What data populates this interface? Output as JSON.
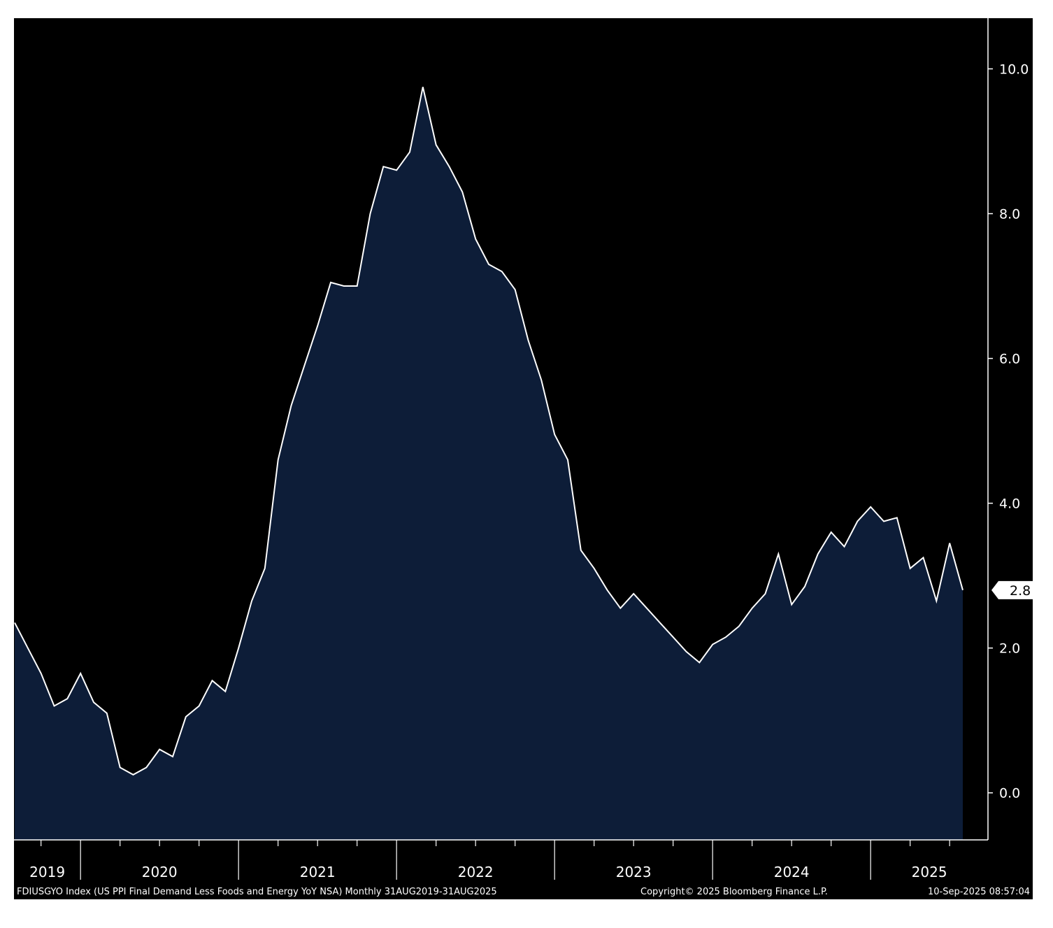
{
  "colors": {
    "background": "#000000",
    "area_fill": "#0d1d38",
    "line": "#ffffff",
    "text": "#ffffff",
    "page": "#ffffff"
  },
  "footer": {
    "series_description": "FDIUSGYO Index (US PPI Final Demand Less Foods and Energy YoY NSA)  Monthly 31AUG2019-31AUG2025",
    "copyright": "Copyright© 2025 Bloomberg Finance L.P.",
    "timestamp": "10-Sep-2025 08:57:04"
  },
  "chart_data": {
    "type": "area",
    "title": "",
    "xlabel": "",
    "ylabel": "",
    "x_range": [
      "2019-08",
      "2025-08"
    ],
    "ylim": [
      -0.65,
      10.7
    ],
    "y_ticks": [
      0.0,
      2.0,
      4.0,
      6.0,
      8.0,
      10.0
    ],
    "y_tick_labels": [
      "0.0",
      "2.0",
      "4.0",
      "6.0",
      "8.0",
      "10.0"
    ],
    "x_tick_labels": [
      "2019",
      "2020",
      "2021",
      "2022",
      "2023",
      "2024",
      "2025"
    ],
    "grid": false,
    "last_value_label": "2.8",
    "x": [
      "2019-08",
      "2019-09",
      "2019-10",
      "2019-11",
      "2019-12",
      "2020-01",
      "2020-02",
      "2020-03",
      "2020-04",
      "2020-05",
      "2020-06",
      "2020-07",
      "2020-08",
      "2020-09",
      "2020-10",
      "2020-11",
      "2020-12",
      "2021-01",
      "2021-02",
      "2021-03",
      "2021-04",
      "2021-05",
      "2021-06",
      "2021-07",
      "2021-08",
      "2021-09",
      "2021-10",
      "2021-11",
      "2021-12",
      "2022-01",
      "2022-02",
      "2022-03",
      "2022-04",
      "2022-05",
      "2022-06",
      "2022-07",
      "2022-08",
      "2022-09",
      "2022-10",
      "2022-11",
      "2022-12",
      "2023-01",
      "2023-02",
      "2023-03",
      "2023-04",
      "2023-05",
      "2023-06",
      "2023-07",
      "2023-08",
      "2023-09",
      "2023-10",
      "2023-11",
      "2023-12",
      "2024-01",
      "2024-02",
      "2024-03",
      "2024-04",
      "2024-05",
      "2024-06",
      "2024-07",
      "2024-08",
      "2024-09",
      "2024-10",
      "2024-11",
      "2024-12",
      "2025-01",
      "2025-02",
      "2025-03",
      "2025-04",
      "2025-05",
      "2025-06",
      "2025-07",
      "2025-08"
    ],
    "series": [
      {
        "values": [
          2.35,
          2.0,
          1.65,
          1.2,
          1.3,
          1.65,
          1.25,
          1.1,
          0.35,
          0.25,
          0.35,
          0.6,
          0.5,
          1.05,
          1.2,
          1.55,
          1.4,
          2.0,
          2.65,
          3.1,
          4.6,
          5.35,
          5.9,
          6.45,
          7.05,
          7.0,
          7.0,
          8.0,
          8.65,
          8.6,
          8.85,
          9.75,
          8.95,
          8.65,
          8.3,
          7.65,
          7.3,
          7.2,
          6.95,
          6.25,
          5.7,
          4.95,
          4.6,
          3.35,
          3.1,
          2.8,
          2.55,
          2.75,
          2.55,
          2.35,
          2.15,
          1.95,
          1.8,
          2.05,
          2.15,
          2.3,
          2.55,
          2.75,
          3.3,
          2.6,
          2.85,
          3.3,
          3.6,
          3.4,
          3.75,
          3.95,
          3.75,
          3.8,
          3.1,
          3.25,
          2.65,
          3.45,
          2.8
        ]
      }
    ]
  }
}
